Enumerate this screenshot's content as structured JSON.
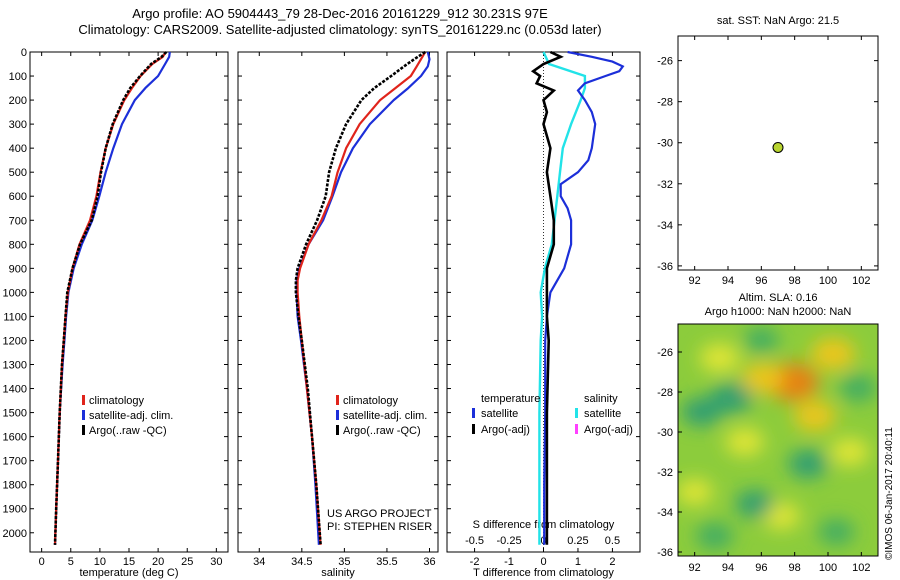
{
  "title_line1": "Argo profile: AO 5904443_79 28-Dec-2016 20161229_912 30.231S 97E",
  "title_line2": "Climatology: CARS2009. Satellite-adjusted climatology: synTS_20161229.nc (0.053d later)",
  "credits_line1": "US ARGO PROJECT",
  "credits_line2": "PI: STEPHEN RISER",
  "footer_vertical": "©IMOS 06-Jan-2017 20:40:11",
  "colors": {
    "climatology": "#e0241b",
    "satellite": "#1c2fd9",
    "argo": "#000000",
    "sal_sat": "#22e3e8",
    "sal_argo": "#ff40ff"
  },
  "chart_data": [
    {
      "id": "temperature",
      "type": "line",
      "xlabel": "temperature (deg C)",
      "xlim": [
        -2,
        32
      ],
      "x_ticks": [
        0,
        5,
        10,
        15,
        20,
        25,
        30
      ],
      "ylim": [
        2080,
        0
      ],
      "y_ticks": [
        0,
        100,
        200,
        300,
        400,
        500,
        600,
        700,
        800,
        900,
        1000,
        1100,
        1200,
        1300,
        1400,
        1500,
        1600,
        1700,
        1800,
        1900,
        2000
      ],
      "legend": [
        "climatology",
        "satellite-adj. clim.",
        "Argo(..raw -QC)"
      ],
      "series": [
        {
          "name": "climatology",
          "depth": [
            0,
            20,
            50,
            100,
            150,
            200,
            300,
            400,
            500,
            600,
            700,
            800,
            900,
            1000,
            1100,
            1200,
            1300,
            1500,
            1700,
            1900,
            2050
          ],
          "values": [
            21.3,
            20.8,
            19.0,
            17.0,
            15.5,
            14.2,
            12.3,
            11.0,
            10.1,
            9.4,
            8.3,
            6.5,
            5.3,
            4.5,
            4.1,
            3.8,
            3.5,
            3.1,
            2.8,
            2.5,
            2.3
          ]
        },
        {
          "name": "satellite-adj. clim.",
          "depth": [
            0,
            20,
            50,
            100,
            150,
            200,
            300,
            400,
            500,
            600,
            700,
            800,
            900,
            1000,
            1100,
            1200,
            1300,
            1500,
            1700,
            1900,
            2050
          ],
          "values": [
            22.0,
            21.9,
            21.2,
            20.0,
            17.8,
            16.0,
            13.8,
            12.3,
            11.0,
            9.9,
            8.7,
            6.9,
            5.5,
            4.6,
            4.2,
            3.9,
            3.6,
            3.1,
            2.8,
            2.5,
            2.3
          ]
        },
        {
          "name": "Argo(..raw -QC)",
          "depth": [
            0,
            20,
            50,
            100,
            150,
            200,
            300,
            400,
            500,
            600,
            700,
            800,
            900,
            1000,
            1100,
            1200,
            1300,
            1500,
            1700,
            1900,
            2050
          ],
          "values": [
            21.4,
            20.6,
            18.8,
            16.9,
            15.2,
            14.0,
            12.2,
            11.0,
            10.2,
            9.6,
            8.6,
            6.6,
            5.3,
            4.4,
            4.1,
            3.8,
            3.5,
            3.1,
            2.8,
            2.5,
            2.3
          ]
        }
      ]
    },
    {
      "id": "salinity",
      "type": "line",
      "xlabel": "salinity",
      "xlim": [
        33.75,
        36.1
      ],
      "x_ticks": [
        34,
        34.5,
        35,
        35.5,
        36
      ],
      "x_tick_labels": [
        "34",
        "34.5",
        "35",
        "35.5",
        "36"
      ],
      "ylim": [
        2080,
        0
      ],
      "legend": [
        "climatology",
        "satellite-adj. clim.",
        "Argo(..raw -QC)"
      ],
      "series": [
        {
          "name": "climatology",
          "depth": [
            0,
            30,
            60,
            100,
            150,
            200,
            300,
            400,
            500,
            600,
            700,
            800,
            900,
            950,
            1000,
            1100,
            1200,
            1400,
            1600,
            1800,
            2050
          ],
          "values": [
            35.95,
            35.9,
            35.85,
            35.78,
            35.6,
            35.42,
            35.18,
            35.02,
            34.92,
            34.85,
            34.73,
            34.58,
            34.48,
            34.45,
            34.45,
            34.47,
            34.5,
            34.56,
            34.62,
            34.67,
            34.72
          ]
        },
        {
          "name": "satellite-adj. clim.",
          "depth": [
            0,
            30,
            60,
            100,
            150,
            200,
            300,
            400,
            500,
            600,
            700,
            800,
            900,
            950,
            1000,
            1100,
            1200,
            1400,
            1600,
            1800,
            2050
          ],
          "values": [
            35.98,
            36.0,
            35.98,
            35.9,
            35.75,
            35.58,
            35.3,
            35.1,
            34.96,
            34.86,
            34.75,
            34.58,
            34.47,
            34.44,
            34.44,
            34.45,
            34.49,
            34.56,
            34.62,
            34.66,
            34.7
          ]
        },
        {
          "name": "Argo(..raw -QC)",
          "depth": [
            0,
            30,
            60,
            100,
            150,
            200,
            300,
            400,
            500,
            600,
            700,
            800,
            900,
            950,
            1000,
            1100,
            1200,
            1400,
            1600,
            1800,
            2050
          ],
          "values": [
            35.95,
            35.82,
            35.7,
            35.55,
            35.35,
            35.2,
            35.02,
            34.9,
            34.82,
            34.78,
            34.68,
            34.55,
            34.45,
            34.43,
            34.43,
            34.46,
            34.5,
            34.57,
            34.62,
            34.67,
            34.72
          ]
        }
      ]
    },
    {
      "id": "difference",
      "type": "line",
      "xlabel": "T difference from climatology",
      "xlim": [
        -2.8,
        2.8
      ],
      "x_ticks": [
        -2,
        -1,
        0,
        1,
        2
      ],
      "x2label": "S difference from climatology",
      "x2_ticks": [
        -0.5,
        -0.25,
        0,
        0.25,
        0.5
      ],
      "x2_tick_labels": [
        "-0.5",
        "-0.25",
        "0",
        "0.25",
        "0.5"
      ],
      "ylim": [
        2080,
        0
      ],
      "legend": {
        "temperature_header": "temperature",
        "salinity_header": "salinity",
        "entries": [
          "satellite",
          "Argo(-adj)",
          "satellite",
          "Argo(-adj)"
        ]
      },
      "series": [
        {
          "name": "temperature satellite",
          "depth": [
            0,
            20,
            40,
            60,
            80,
            100,
            130,
            160,
            200,
            250,
            300,
            400,
            450,
            500,
            550,
            600,
            650,
            700,
            800,
            900,
            1000,
            1100,
            1200,
            1500,
            1800,
            2050
          ],
          "values": [
            0.7,
            1.4,
            2.0,
            2.3,
            2.2,
            1.8,
            1.2,
            1.0,
            1.2,
            1.4,
            1.5,
            1.4,
            1.3,
            1.0,
            0.5,
            0.5,
            0.7,
            0.8,
            0.8,
            0.6,
            0.2,
            0.1,
            0.05,
            0.05,
            0.02,
            0.02
          ]
        },
        {
          "name": "temperature Argo(-adj)",
          "depth": [
            0,
            20,
            50,
            80,
            100,
            130,
            160,
            200,
            250,
            300,
            400,
            500,
            600,
            700,
            800,
            900,
            1000,
            1100,
            1200,
            1500,
            1800,
            2050
          ],
          "values": [
            0.2,
            0.5,
            0.0,
            -0.3,
            -0.1,
            -0.2,
            0.3,
            0.0,
            0.1,
            0.0,
            0.2,
            0.1,
            0.2,
            0.3,
            0.3,
            0.1,
            0.1,
            0.1,
            0.15,
            0.1,
            0.1,
            0.1
          ]
        },
        {
          "name": "salinity satellite",
          "depth": [
            0,
            50,
            100,
            150,
            200,
            300,
            400,
            500,
            600,
            700,
            800,
            900,
            1000,
            1100,
            1200,
            1500,
            1800,
            2050
          ],
          "values": [
            0.0,
            0.04,
            0.3,
            0.3,
            0.27,
            0.2,
            0.14,
            0.12,
            0.1,
            0.08,
            0.06,
            0.01,
            -0.02,
            -0.01,
            -0.02,
            -0.03,
            -0.03,
            -0.03
          ]
        }
      ]
    },
    {
      "id": "location",
      "type": "scatter",
      "title": "sat. SST: NaN Argo: 21.5",
      "xlim": [
        91,
        103
      ],
      "x_ticks": [
        92,
        94,
        96,
        98,
        100,
        102
      ],
      "ylim": [
        -36.2,
        -24.8
      ],
      "y_ticks": [
        -26,
        -28,
        -30,
        -32,
        -34,
        -36
      ],
      "points": [
        {
          "x": 97,
          "y": -30.23
        }
      ]
    },
    {
      "id": "sla",
      "type": "heatmap",
      "title_line1": "Altim. SLA: 0.16",
      "title_line2": "Argo h1000: NaN h2000: NaN",
      "xlim": [
        91,
        103
      ],
      "x_ticks": [
        92,
        94,
        96,
        98,
        100,
        102
      ],
      "ylim": [
        -36.2,
        -24.6
      ],
      "y_ticks": [
        -26,
        -28,
        -30,
        -32,
        -34,
        -36
      ],
      "blobs": [
        {
          "x": 97.9,
          "y": -27.5,
          "v": 1.0
        },
        {
          "x": 100.3,
          "y": -26.1,
          "v": 0.7
        },
        {
          "x": 96.1,
          "y": -27.3,
          "v": 0.6
        },
        {
          "x": 99.2,
          "y": -29.2,
          "v": 0.6
        },
        {
          "x": 93.5,
          "y": -26.3,
          "v": 0.5
        },
        {
          "x": 95.0,
          "y": -30.5,
          "v": 0.45
        },
        {
          "x": 101.3,
          "y": -31.0,
          "v": 0.45
        },
        {
          "x": 97.2,
          "y": -34.2,
          "v": 0.4
        },
        {
          "x": 92.0,
          "y": -33.0,
          "v": 0.35
        },
        {
          "x": 94.2,
          "y": -28.3,
          "v": -0.6
        },
        {
          "x": 92.4,
          "y": -29.0,
          "v": -0.5
        },
        {
          "x": 98.8,
          "y": -31.6,
          "v": -0.5
        },
        {
          "x": 95.6,
          "y": -33.6,
          "v": -0.45
        },
        {
          "x": 101.8,
          "y": -27.8,
          "v": -0.4
        },
        {
          "x": 93.2,
          "y": -35.2,
          "v": -0.4
        },
        {
          "x": 100.5,
          "y": -35.0,
          "v": -0.35
        },
        {
          "x": 96.0,
          "y": -25.4,
          "v": -0.3
        }
      ]
    }
  ]
}
